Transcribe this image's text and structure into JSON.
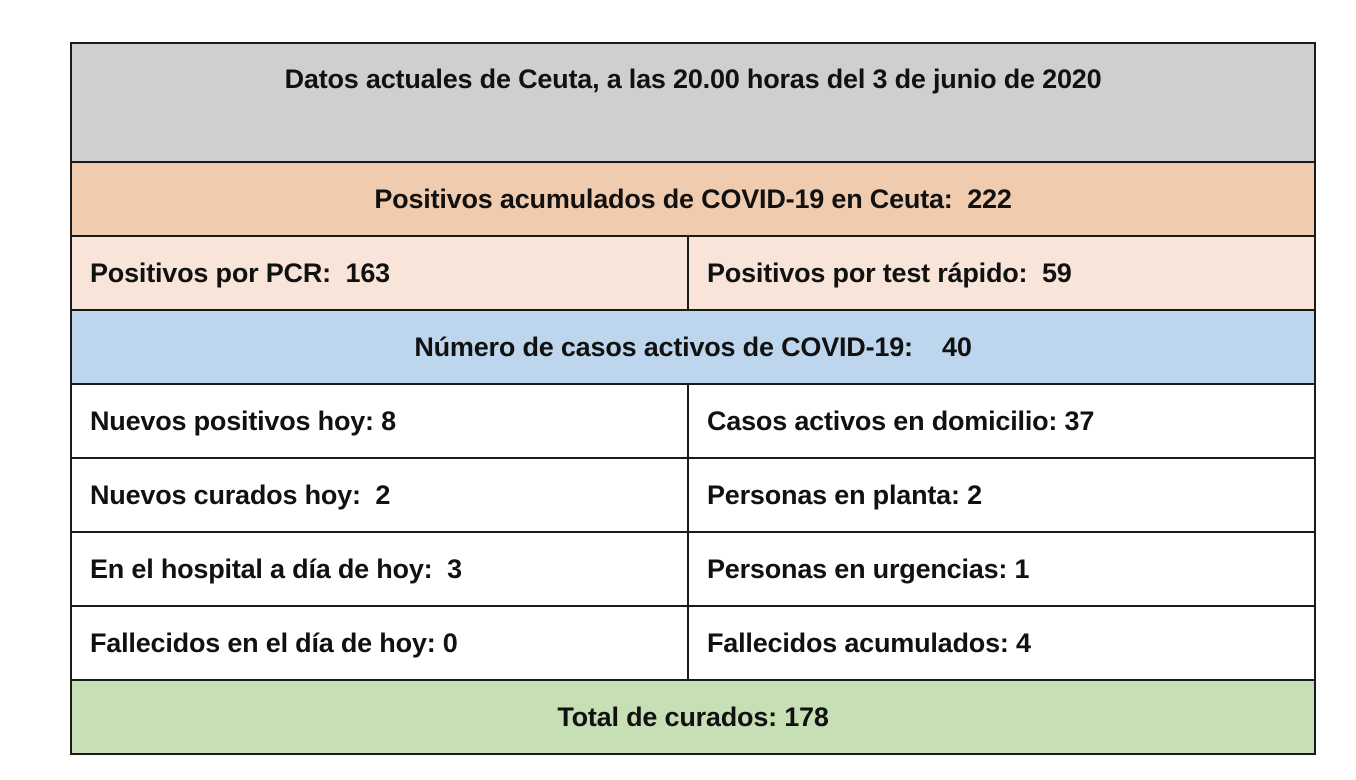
{
  "report": {
    "title": "Datos actuales de Ceuta, a las 20.00 horas del 3 de junio de 2020",
    "cumulative_positives": "Positivos acumulados de COVID-19 en Ceuta:  222",
    "pcr_positives": "Positivos por PCR:  163",
    "rapid_test_positives": "Positivos por test rápido:  59",
    "active_cases": "Número de casos activos de COVID-19:    40",
    "new_positives_today": "Nuevos positivos hoy: 8",
    "active_at_home": "Casos activos en domicilio: 37",
    "new_recovered_today": "Nuevos curados hoy:  2",
    "persons_in_ward": "Personas en planta: 2",
    "in_hospital_today": "En el hospital a día de hoy:  3",
    "persons_in_emergency": "Personas en urgencias: 1",
    "deaths_today": "Fallecidos en el día de hoy: 0",
    "cumulative_deaths": "Fallecidos acumulados: 4",
    "total_recovered": "Total de curados: 178"
  },
  "colors": {
    "title_bg": "#D0CECE",
    "cumulative_bg": "#F0CBAE",
    "positives_split_bg": "#F8E4D8",
    "active_bg": "#BDD6EE",
    "plain_bg": "#FFFFFF",
    "recovered_bg": "#C6DFB5",
    "border": "#1A1A1A"
  }
}
